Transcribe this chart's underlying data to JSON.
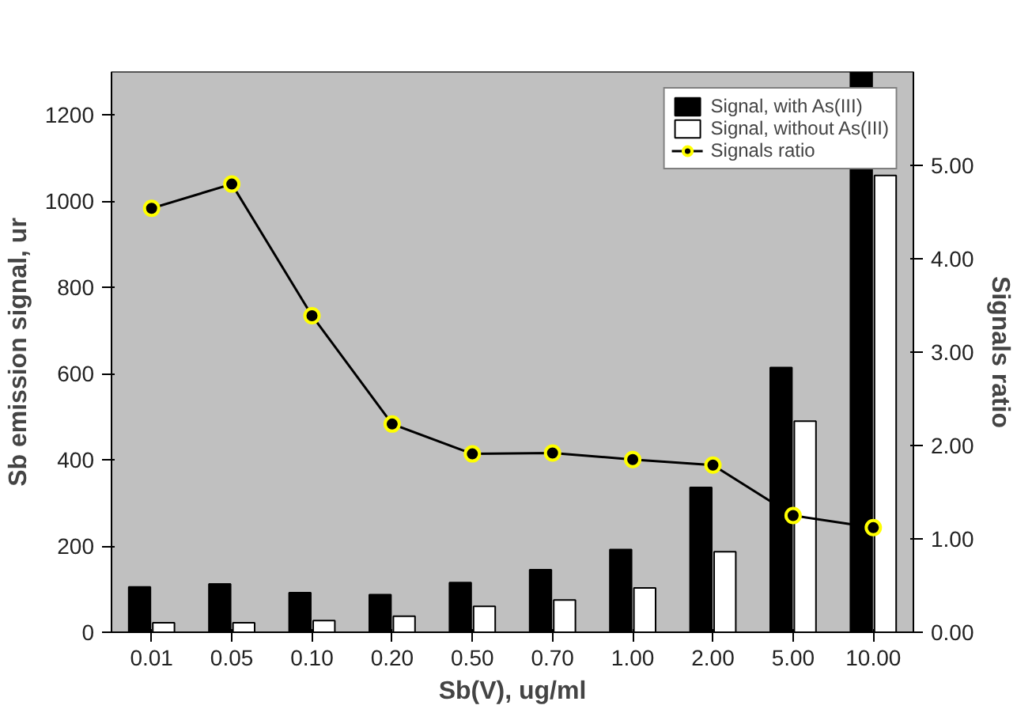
{
  "chart_data": {
    "type": "bar",
    "xlabel": "Sb(V), ug/ml",
    "ylabel": "Sb emission signal, ur",
    "y2label": "Signals ratio",
    "categories": [
      "0.01",
      "0.05",
      "0.10",
      "0.20",
      "0.50",
      "0.70",
      "1.00",
      "2.00",
      "5.00",
      "10.00"
    ],
    "series": [
      {
        "name": "Signal, with As(III)",
        "color": "#000000",
        "values": [
          105,
          112,
          92,
          87,
          115,
          145,
          192,
          336,
          614,
          1300
        ]
      },
      {
        "name": "Signal, without As(III)",
        "color": "#ffffff",
        "values": [
          22,
          22,
          27,
          37,
          60,
          75,
          103,
          187,
          490,
          1060
        ]
      },
      {
        "type": "line",
        "axis": "y2",
        "name": "Signals ratio",
        "color": "#000000",
        "marker": "circle",
        "values": [
          4.54,
          4.8,
          3.39,
          2.23,
          1.91,
          1.92,
          1.85,
          1.79,
          1.25,
          1.12
        ]
      }
    ],
    "ylim": [
      0,
      1300
    ],
    "yticks": [
      0,
      200,
      400,
      600,
      800,
      1000,
      1200
    ],
    "y2lim": [
      0,
      6
    ],
    "y2ticks": [
      {
        "value": 0,
        "label": "0.00"
      },
      {
        "value": 1,
        "label": "1.00"
      },
      {
        "value": 2,
        "label": "2.00"
      },
      {
        "value": 3,
        "label": "3.00"
      },
      {
        "value": 4,
        "label": "4.00"
      },
      {
        "value": 5,
        "label": "5.00"
      }
    ],
    "grid": false,
    "legend": "top right"
  }
}
